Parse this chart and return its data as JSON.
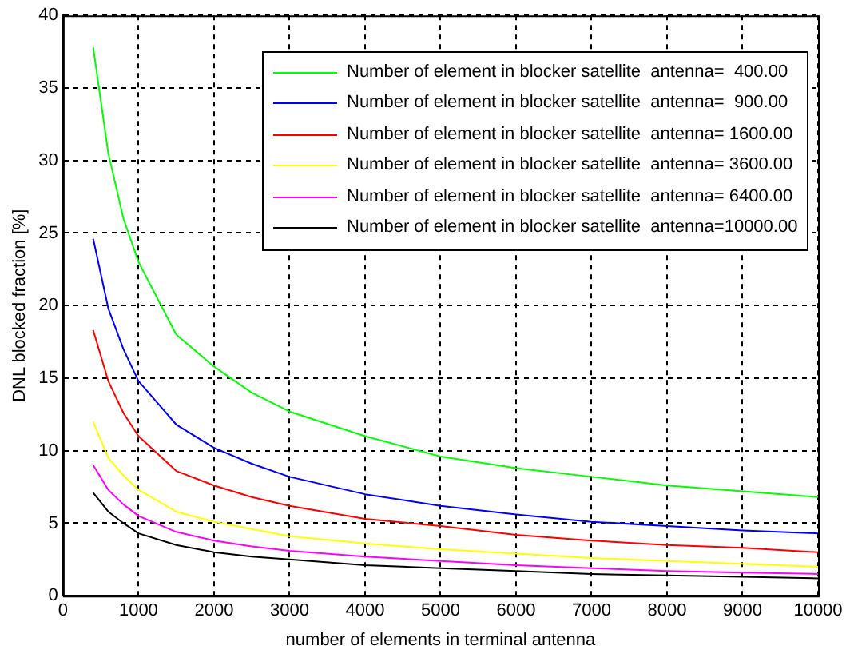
{
  "chart_data": {
    "type": "line",
    "xlabel": "number of elements in terminal antenna",
    "ylabel": "DNL blocked fraction [%]",
    "x": [
      400,
      600,
      800,
      1000,
      1500,
      2000,
      2500,
      3000,
      4000,
      5000,
      6000,
      7000,
      8000,
      9000,
      10000
    ],
    "xlim": [
      0,
      10000
    ],
    "xticks": [
      0,
      1000,
      2000,
      3000,
      4000,
      5000,
      6000,
      7000,
      8000,
      9000,
      10000
    ],
    "ylim": [
      0,
      40
    ],
    "yticks": [
      0,
      5,
      10,
      15,
      20,
      25,
      30,
      35,
      40
    ],
    "grid": true,
    "legend": "top right",
    "marker": "none",
    "line_style": "solid",
    "series": [
      {
        "name": "Number of element in blocker satellite  antenna=  400.00",
        "color": "#00ff00",
        "values": [
          37.8,
          30.5,
          26,
          23,
          18,
          15.8,
          14,
          12.7,
          11,
          9.6,
          8.8,
          8.2,
          7.6,
          7.2,
          6.8
        ]
      },
      {
        "name": "Number of element in blocker satellite  antenna=  900.00",
        "color": "#0000ff",
        "values": [
          24.6,
          19.8,
          17,
          14.8,
          11.8,
          10.2,
          9.1,
          8.2,
          7,
          6.2,
          5.6,
          5.1,
          4.8,
          4.5,
          4.3
        ]
      },
      {
        "name": "Number of element in blocker satellite  antenna= 1600.00",
        "color": "#ff0000",
        "values": [
          18.3,
          14.8,
          12.6,
          11,
          8.6,
          7.6,
          6.8,
          6.2,
          5.3,
          4.8,
          4.2,
          3.8,
          3.5,
          3.3,
          3
        ]
      },
      {
        "name": "Number of element in blocker satellite  antenna= 3600.00",
        "color": "#ffff00",
        "values": [
          12,
          9.5,
          8.3,
          7.3,
          5.8,
          5.1,
          4.6,
          4.1,
          3.6,
          3.2,
          2.9,
          2.6,
          2.4,
          2.2,
          2
        ]
      },
      {
        "name": "Number of element in blocker satellite  antenna= 6400.00",
        "color": "#ff00ff",
        "values": [
          9,
          7.3,
          6.3,
          5.5,
          4.4,
          3.8,
          3.4,
          3.1,
          2.7,
          2.4,
          2.1,
          1.9,
          1.7,
          1.6,
          1.5
        ]
      },
      {
        "name": "Number of element in blocker satellite  antenna=10000.00",
        "color": "#000000",
        "values": [
          7.1,
          5.8,
          5,
          4.3,
          3.5,
          3,
          2.7,
          2.5,
          2.1,
          1.9,
          1.7,
          1.5,
          1.4,
          1.3,
          1.2
        ]
      }
    ]
  }
}
